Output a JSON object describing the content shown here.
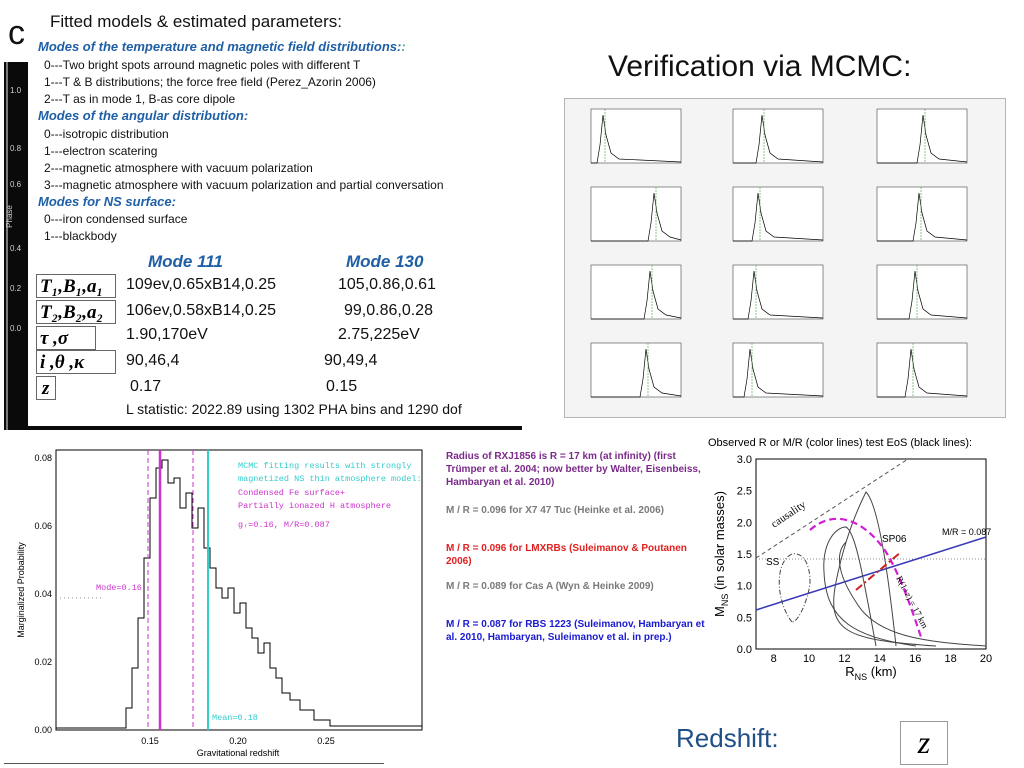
{
  "slide": {
    "partial_title": "c",
    "fit_panel": {
      "title": "Fitted models & estimated parameters:",
      "temp_header": "Modes of the temperature and magnetic field distributions:",
      "temp_header_suffix": ":",
      "temp_modes": [
        "0---Two bright spots arround magnetic poles with different T",
        "1---T & B distributions; the force free field  (Perez_Azorin 2006)",
        "2---T  as in mode 1, B-as core dipole"
      ],
      "angular_header": "Modes of the angular distribution:",
      "angular_modes": [
        "0---isotropic distribution",
        "1---electron scatering",
        "2---magnetic atmosphere with vacuum polarization",
        "3---magnetic atmosphere with vacuum polarization and partial conversation"
      ],
      "surface_header": "Modes for NS surface:",
      "surface_modes": [
        "0---iron condensed surface",
        "1---blackbody"
      ],
      "mode_a": "Mode 111",
      "mode_b": "Mode 130",
      "params": [
        {
          "symbol": "T₁,B₁,a₁",
          "a": "109ev,0.65xB14,0.25",
          "b": "105,0.86,0.61"
        },
        {
          "symbol": "T₂,B₂,a₂",
          "a": "106ev,0.58xB14,0.25",
          "b": "99,0.86,0.28"
        },
        {
          "symbol": "τ ,σ",
          "a": "1.90,170eV",
          "b": "2.75,225eV"
        },
        {
          "symbol": "i ,θ ,κ",
          "a": "90,46,4",
          "b": "90,49,4"
        },
        {
          "symbol": "z",
          "a": "0.17",
          "b": "0.15"
        }
      ],
      "l_statistic": "L statistic:  2022.89 using 1302 PHA bins and 1290 dof"
    },
    "bg_plot": {
      "ticks": [
        "1.0",
        "0.8",
        "0.6",
        "0.4",
        "0.2",
        "0.0"
      ],
      "ylabel": "Phase"
    },
    "mcmc": {
      "title": "Verification via MCMC:"
    },
    "histogram": {
      "xlabel": "Gravitational redshift",
      "ylabel": "Marginalized Probability",
      "y_ticks": [
        "0.00",
        "0.02",
        "0.04",
        "0.06",
        "0.08"
      ],
      "x_ticks": [
        "0.15",
        "0.20",
        "0.25"
      ],
      "legend_lines": [
        "MCMC fitting results with strongly",
        "magnetized NS thin atmosphere model:"
      ],
      "legend_lines2": [
        "Condensed Fe surface+",
        "Partially ionazed H atmosphere"
      ],
      "legend_g": "gᵣ=0.16, M/R=0.087",
      "mode_label": "Mode=0.16",
      "mean_label": "Mean=0.18",
      "colors": {
        "mcmc": "#33cccc",
        "model": "#cc33cc"
      }
    },
    "notes": [
      {
        "text": "Radius of RXJ1856 is R  =  17 km (at infinity) (first Trümper et al. 2004; now better by Walter, Eisenbeiss, Hambaryan et al. 2010)",
        "color": "#7b2a8a"
      },
      {
        "text": "M / R = 0.096 for  X7 47 Tuc (Heinke et al. 2006)",
        "color": "#7a7a7a"
      },
      {
        "text": "M / R = 0.096 for LMXRBs (Suleimanov & Poutanen 2006)",
        "color": "#e02020"
      },
      {
        "text": "M / R = 0.089 for Cas A (Wyn & Heinke 2009)",
        "color": "#7a7a7a"
      },
      {
        "text": "M / R = 0.087 for RBS 1223 (Suleimanov, Hambaryan et al. 2010, Hambaryan, Suleimanov et al. in prep.)",
        "color": "#1a1ad0"
      }
    ],
    "mr_plot": {
      "title": "Observed R or M/R (color lines) test EoS (black lines):",
      "xlabel": "R",
      "xlabel_sub": "NS",
      "xlabel_unit": " (km)",
      "ylabel": "M",
      "ylabel_sub": "NS",
      "ylabel_unit": " (in solar masses)",
      "x_ticks": [
        "8",
        "10",
        "12",
        "14",
        "16",
        "18",
        "20"
      ],
      "y_ticks": [
        "0.0",
        "0.5",
        "1.0",
        "1.5",
        "2.0",
        "2.5",
        "3.0"
      ],
      "labels": {
        "causality": "causality",
        "ss": "SS",
        "sp06": "SP06",
        "mr": "M/R = 0.087",
        "r17": "R(1+z) = 17 km"
      }
    },
    "redshift_label": "Redshift:",
    "z_symbol": "z"
  }
}
